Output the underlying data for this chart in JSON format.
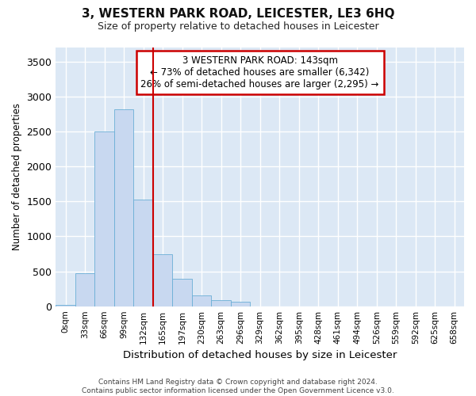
{
  "title": "3, WESTERN PARK ROAD, LEICESTER, LE3 6HQ",
  "subtitle": "Size of property relative to detached houses in Leicester",
  "xlabel": "Distribution of detached houses by size in Leicester",
  "ylabel": "Number of detached properties",
  "bar_color": "#c8d8f0",
  "bar_edge_color": "#6baed6",
  "background_color": "#dce8f5",
  "grid_color": "#ffffff",
  "vline_color": "#cc0000",
  "vline_x": 4.5,
  "annotation_text": "3 WESTERN PARK ROAD: 143sqm\n← 73% of detached houses are smaller (6,342)\n26% of semi-detached houses are larger (2,295) →",
  "footer_text": "Contains HM Land Registry data © Crown copyright and database right 2024.\nContains public sector information licensed under the Open Government Licence v3.0.",
  "categories": [
    "0sqm",
    "33sqm",
    "66sqm",
    "99sqm",
    "132sqm",
    "165sqm",
    "197sqm",
    "230sqm",
    "263sqm",
    "296sqm",
    "329sqm",
    "362sqm",
    "395sqm",
    "428sqm",
    "461sqm",
    "494sqm",
    "526sqm",
    "559sqm",
    "592sqm",
    "625sqm",
    "658sqm"
  ],
  "values": [
    20,
    470,
    2500,
    2820,
    1520,
    740,
    390,
    150,
    90,
    60,
    0,
    0,
    0,
    0,
    0,
    0,
    0,
    0,
    0,
    0,
    0
  ],
  "ylim": [
    0,
    3700
  ],
  "yticks": [
    0,
    500,
    1000,
    1500,
    2000,
    2500,
    3000,
    3500
  ]
}
